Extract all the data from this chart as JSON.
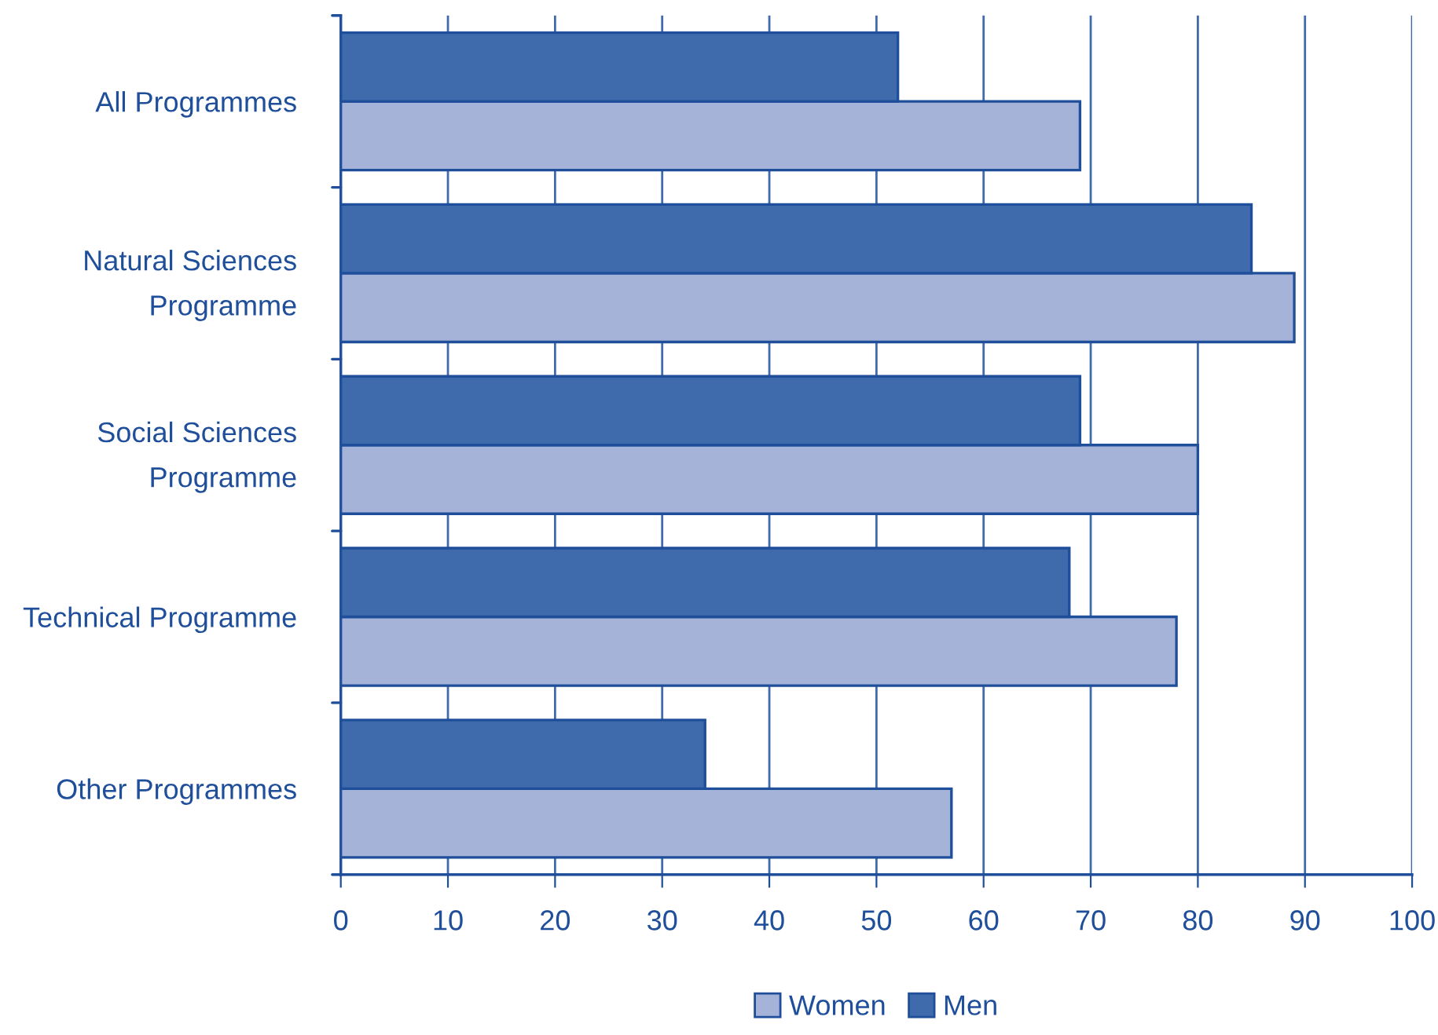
{
  "chart_data": {
    "type": "bar",
    "orientation": "horizontal",
    "categories": [
      "All Programmes",
      "Natural Sciences\nProgramme",
      "Social Sciences\nProgramme",
      "Technical Programme",
      "Other Programmes"
    ],
    "series": [
      {
        "name": "Women",
        "color": "#a6b3d8",
        "values": [
          69,
          89,
          80,
          78,
          57
        ]
      },
      {
        "name": "Men",
        "color": "#3f6aac",
        "values": [
          52,
          85,
          69,
          68,
          34
        ]
      }
    ],
    "xlim": [
      0,
      100
    ],
    "xticks": [
      0,
      10,
      20,
      30,
      40,
      50,
      60,
      70,
      80,
      90,
      100
    ],
    "grid": "x",
    "legend": "bottom"
  }
}
